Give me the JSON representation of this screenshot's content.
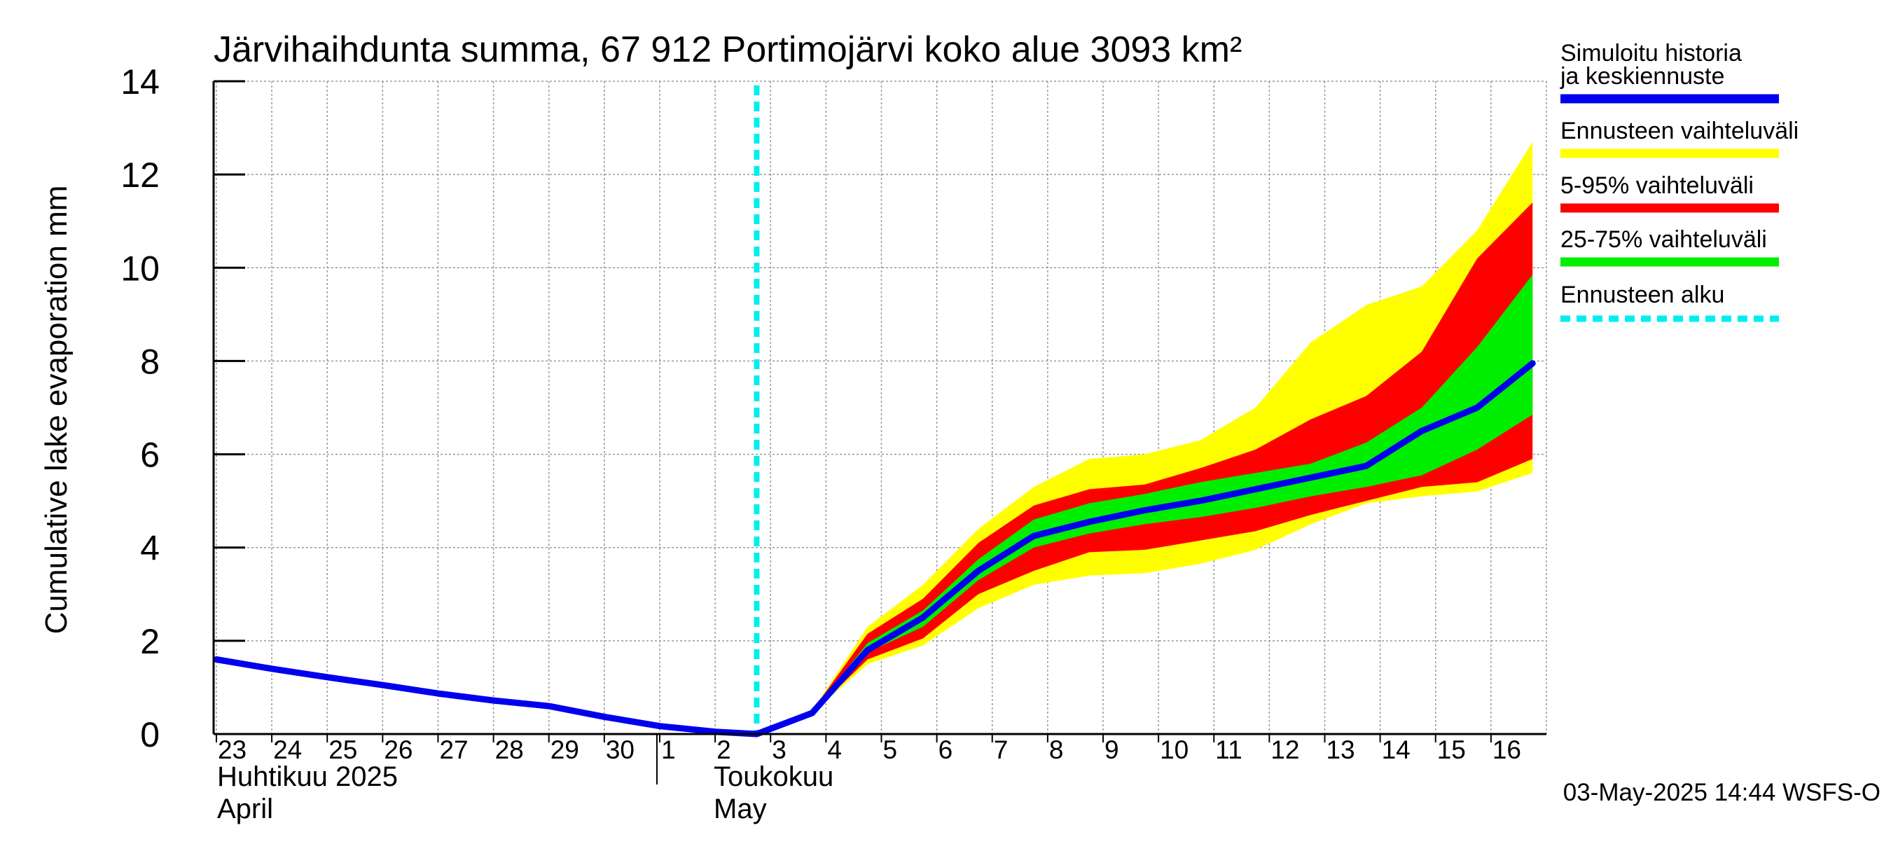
{
  "chart_data": {
    "type": "area",
    "title": "Järvihaihdunta summa, 67 912 Portimojärvi koko alue 3093 km²",
    "ylabel": "Cumulative lake evaporation   mm",
    "ylim": [
      0,
      14
    ],
    "yticks": [
      "0",
      "2",
      "4",
      "6",
      "8",
      "10",
      "12",
      "14"
    ],
    "x_day_labels": [
      "23",
      "24",
      "25",
      "26",
      "27",
      "28",
      "29",
      "30",
      "1",
      "2",
      "3",
      "4",
      "5",
      "6",
      "7",
      "8",
      "9",
      "10",
      "11",
      "12",
      "13",
      "14",
      "15",
      "16"
    ],
    "month_labels": {
      "april_fi": "Huhtikuu  2025",
      "april_en": "April",
      "may_fi": "Toukokuu",
      "may_en": "May"
    },
    "grid": true,
    "forecast_start_day": 9.75,
    "x_range": [
      -0.05,
      24
    ],
    "history_line": {
      "x": [
        0,
        1,
        2,
        3,
        4,
        5,
        6,
        7,
        8,
        9,
        9.75,
        10.75,
        11.75,
        12.75,
        13.75,
        14.75,
        15.75,
        16.75,
        17.75,
        18.75,
        19.75,
        20.75,
        21.75,
        22.75,
        23.75
      ],
      "values": [
        1.6,
        1.4,
        1.22,
        1.05,
        0.87,
        0.72,
        0.6,
        0.37,
        0.17,
        0.05,
        0.0,
        0.45,
        1.8,
        2.5,
        3.5,
        4.25,
        4.55,
        4.8,
        5.0,
        5.25,
        5.5,
        5.75,
        6.5,
        7.0,
        7.95
      ]
    },
    "band_x": [
      9.75,
      10.75,
      11.75,
      12.75,
      13.75,
      14.75,
      15.75,
      16.75,
      17.75,
      18.75,
      19.75,
      20.75,
      21.75,
      22.75,
      23.75
    ],
    "bands": [
      {
        "name": "Ennusteen vaihteluväli",
        "color": "#ffff00",
        "upper": [
          0.0,
          0.5,
          2.3,
          3.2,
          4.4,
          5.3,
          5.9,
          6.0,
          6.3,
          7.0,
          8.4,
          9.2,
          9.6,
          10.8,
          12.7
        ],
        "lower": [
          0.0,
          0.45,
          1.5,
          1.9,
          2.7,
          3.2,
          3.4,
          3.45,
          3.65,
          3.95,
          4.5,
          4.95,
          5.1,
          5.2,
          5.6
        ]
      },
      {
        "name": "5-95% vaihteluväli",
        "color": "#ff0000",
        "upper": [
          0.0,
          0.5,
          2.15,
          2.9,
          4.1,
          4.9,
          5.25,
          5.35,
          5.7,
          6.1,
          6.75,
          7.25,
          8.2,
          10.2,
          11.4
        ],
        "lower": [
          0.0,
          0.45,
          1.6,
          2.05,
          3.0,
          3.5,
          3.9,
          3.95,
          4.15,
          4.35,
          4.7,
          5.0,
          5.3,
          5.4,
          5.9
        ]
      },
      {
        "name": "25-75% vaihteluväli",
        "color": "#00ee00",
        "upper": [
          0.0,
          0.48,
          1.95,
          2.65,
          3.75,
          4.6,
          4.95,
          5.15,
          5.4,
          5.6,
          5.8,
          6.25,
          7.0,
          8.3,
          9.85
        ],
        "lower": [
          0.0,
          0.45,
          1.75,
          2.3,
          3.3,
          4.0,
          4.3,
          4.5,
          4.65,
          4.85,
          5.1,
          5.3,
          5.55,
          6.1,
          6.85
        ]
      }
    ],
    "legend": [
      {
        "label": "Simuloitu historia ja keskiennuste",
        "color": "#0000ee",
        "style": "line"
      },
      {
        "label": "Ennusteen vaihteluväli",
        "color": "#ffff00",
        "style": "line"
      },
      {
        "label": "5-95% vaihteluväli",
        "color": "#ff0000",
        "style": "line"
      },
      {
        "label": "25-75% vaihteluväli",
        "color": "#00ee00",
        "style": "line"
      },
      {
        "label": "Ennusteen alku",
        "color": "#00eeee",
        "style": "dashed"
      }
    ],
    "legend_position": "right",
    "footer": "03-May-2025 14:44 WSFS-O"
  }
}
